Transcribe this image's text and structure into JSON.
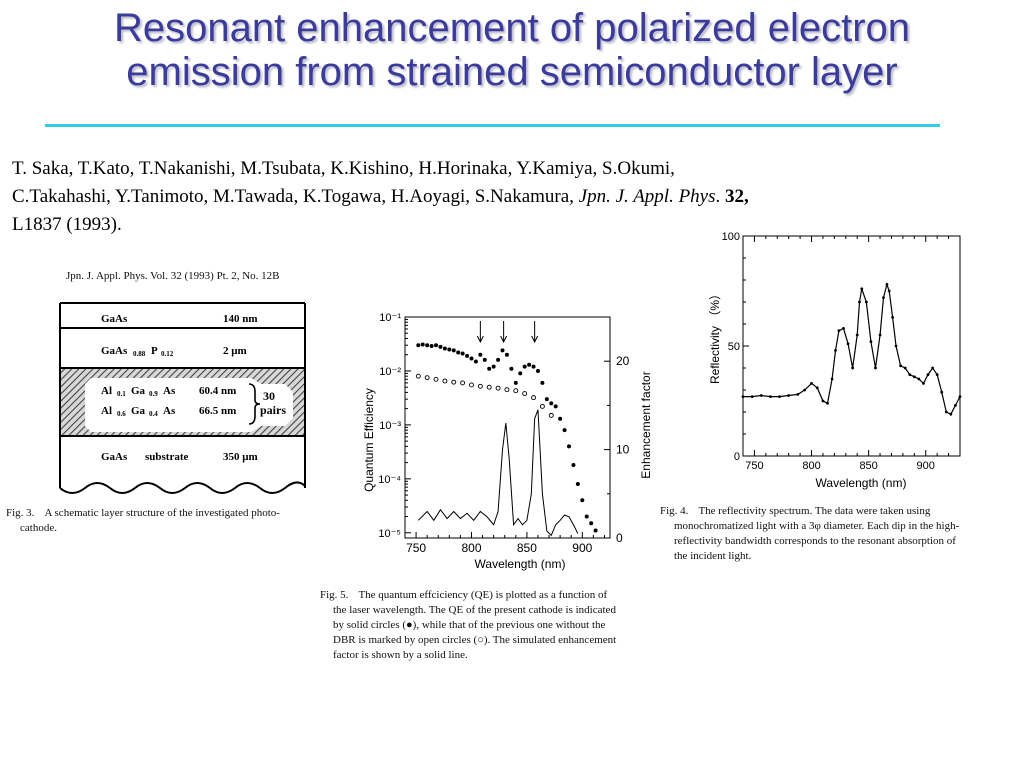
{
  "title": {
    "line1": "Resonant enhancement of polarized electron",
    "line2": "emission from strained semiconductor layer"
  },
  "citation": {
    "authors_line1": "T. Saka, T.Kato, T.Nakanishi, M.Tsubata, K.Kishino, H.Horinaka, Y.Kamiya, S.Okumi,",
    "authors_line2": "C.Takahashi, Y.Tanimoto, M.Tawada, K.Togawa, H.Aoyagi, S.Nakamura",
    "journal": ", Jpn. J. Appl. Phys",
    "sep": ". ",
    "volume": "32,",
    "pages": "L1837 (1993)."
  },
  "journal_header": "Jpn. J. Appl. Phys. Vol. 32 (1993) Pt. 2, No. 12B",
  "fig3": {
    "layers": {
      "gaas_top": "GaAs",
      "gaas_top_thk": "140 nm",
      "gaasp_a": "GaAs",
      "gaasp_sub1": "0.88",
      "gaasp_b": "P",
      "gaasp_sub2": "0.12",
      "gaasp_thk": "2 μm",
      "al1_a": "Al",
      "al1_s1": "0.1",
      "al1_b": "Ga",
      "al1_s2": "0.9",
      "al1_c": "As",
      "al1_thk": "60.4  nm",
      "al2_a": "Al",
      "al2_s1": "0.6",
      "al2_b": "Ga",
      "al2_s2": "0.4",
      "al2_c": "As",
      "al2_thk": "66.5  nm",
      "pairs_n": "30",
      "pairs_lbl": "pairs",
      "substrate_a": "GaAs",
      "substrate_b": "substrate",
      "substrate_thk": "350 μm"
    },
    "caption_label": "Fig. 3.",
    "caption_line1": "A  schematic  layer  structure  of  the  investigated  photo-",
    "caption_line2": "cathode."
  },
  "fig4_caption": {
    "label": "Fig. 4.",
    "line1": "The  reflectivity  spectrum.  The  data  were  taken  using",
    "line2": "monochromatized light with a 3φ diameter. Each dip in the high-",
    "line3": "reflectivity bandwidth corresponds to the resonant absorption of",
    "line4": "the incident light."
  },
  "fig5_caption": {
    "label": "Fig. 5.",
    "line1": "The quantum effciciency (QE) is plotted as a function of",
    "line2": "the laser wavelength. The QE of the present cathode is indicated",
    "line3": "by solid circles (●), while that of the previous one without the",
    "line4": "DBR is marked by open circles (○). The simulated enhancement",
    "line5": "factor is shown by a solid line."
  },
  "chart_data": [
    {
      "id": "fig4-reflectivity",
      "type": "line",
      "xlabel": "Wavelength (nm)",
      "ylabel": "Reflectivity （%）",
      "xlim": [
        740,
        930
      ],
      "ylim": [
        0,
        100
      ],
      "x_ticks": [
        "750",
        "800",
        "850",
        "900"
      ],
      "y_ticks": [
        "0",
        "50",
        "100"
      ],
      "series": [
        {
          "x": [
            740,
            748,
            756,
            764,
            772,
            780,
            788,
            794,
            800,
            805,
            810,
            814,
            818,
            821,
            824,
            828,
            832,
            836,
            840,
            842,
            844,
            848,
            852,
            856,
            860,
            863,
            866,
            868,
            871,
            874,
            878,
            882,
            886,
            890,
            894,
            898,
            902,
            906,
            910,
            914,
            918,
            922,
            926,
            930
          ],
          "y": [
            27,
            27,
            27.5,
            27,
            27,
            27.5,
            28,
            30,
            33,
            31,
            25,
            24,
            35,
            48,
            57,
            58,
            51,
            40,
            55,
            70,
            76,
            70,
            52,
            40,
            55,
            72,
            78,
            75,
            63,
            50,
            41,
            40,
            37,
            36,
            35,
            33,
            37,
            40,
            37,
            29,
            20,
            19,
            23,
            27
          ]
        }
      ]
    },
    {
      "id": "fig5-qe",
      "type": "scatter",
      "xlabel": "Wavelength (nm)",
      "ylabel": "Quantum Efficiency",
      "y2label": "Enhancement factor",
      "xlim": [
        740,
        925
      ],
      "ylim": [
        8e-06,
        0.1
      ],
      "y_log": true,
      "y2lim": [
        0,
        25
      ],
      "x_ticks": [
        "750",
        "800",
        "850",
        "900"
      ],
      "y_ticks": [
        "10⁻¹",
        "10⁻²",
        "10⁻³",
        "10⁻⁴",
        "10⁻⁵"
      ],
      "y2_ticks": [
        "20",
        "10",
        "0"
      ],
      "arrow_wavelengths": [
        808,
        829,
        857
      ],
      "series": [
        {
          "marker": "filled-circle",
          "x": [
            752,
            756,
            760,
            764,
            768,
            772,
            776,
            780,
            784,
            788,
            792,
            796,
            800,
            804,
            808,
            812,
            816,
            820,
            824,
            828,
            832,
            836,
            840,
            844,
            848,
            852,
            856,
            860,
            864,
            868,
            872,
            876,
            880,
            884,
            888,
            892,
            896,
            900,
            904,
            908,
            912
          ],
          "y": [
            0.03,
            0.031,
            0.03,
            0.029,
            0.03,
            0.028,
            0.026,
            0.025,
            0.024,
            0.022,
            0.021,
            0.019,
            0.017,
            0.015,
            0.02,
            0.016,
            0.011,
            0.012,
            0.016,
            0.024,
            0.02,
            0.011,
            0.006,
            0.009,
            0.012,
            0.013,
            0.012,
            0.01,
            0.006,
            0.003,
            0.0025,
            0.0022,
            0.0013,
            0.0008,
            0.0004,
            0.00018,
            8e-05,
            4e-05,
            2e-05,
            1.5e-05,
            1.1e-05
          ]
        },
        {
          "marker": "open-circle",
          "x": [
            752,
            760,
            768,
            776,
            784,
            792,
            800,
            808,
            816,
            824,
            832,
            840,
            848,
            856,
            864,
            872
          ],
          "y": [
            0.008,
            0.0075,
            0.007,
            0.0065,
            0.0062,
            0.006,
            0.0055,
            0.0052,
            0.005,
            0.0048,
            0.0045,
            0.0043,
            0.0038,
            0.0032,
            0.0022,
            0.0015
          ]
        },
        {
          "marker": "line",
          "axis": "y2",
          "x": [
            752,
            760,
            766,
            772,
            778,
            784,
            790,
            796,
            802,
            808,
            814,
            820,
            824,
            828,
            831,
            834,
            838,
            842,
            846,
            850,
            854,
            857,
            860,
            864,
            868,
            872,
            876,
            880,
            884,
            888,
            892,
            896
          ],
          "y": [
            2,
            3,
            2,
            3.2,
            2.2,
            3,
            2.2,
            2.8,
            2,
            3,
            2.4,
            1.5,
            3,
            10,
            13,
            9,
            1.5,
            2.2,
            1.5,
            2,
            5,
            13.5,
            14.5,
            5,
            0.8,
            0.3,
            1.5,
            2,
            2.6,
            2.4,
            1.5,
            0.5
          ]
        }
      ]
    }
  ]
}
